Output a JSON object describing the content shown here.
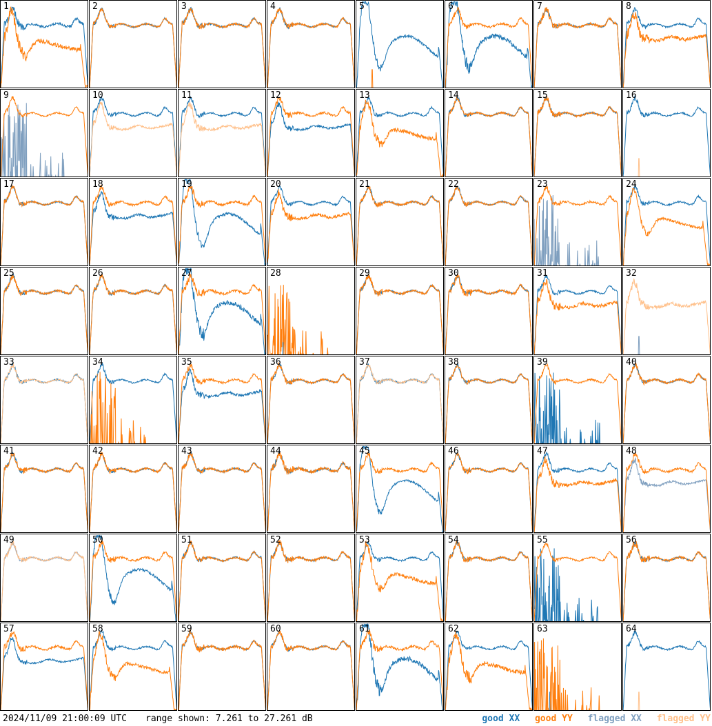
{
  "footer": {
    "timestamp": "2024/11/09 21:00:09 UTC",
    "range_label": "range shown: 7.261 to 27.261 dB"
  },
  "legend": [
    {
      "label": "good XX",
      "color": "#1f77b4"
    },
    {
      "label": "good YY",
      "color": "#ff7f0e"
    },
    {
      "label": "flagged XX",
      "color": "#7f9fbf"
    },
    {
      "label": "flagged YY",
      "color": "#ffc08a"
    }
  ],
  "chart_data": {
    "type": "line",
    "ylim": [
      7.261,
      27.261
    ],
    "grid_rows": 8,
    "grid_cols": 8,
    "panels": [
      {
        "label": "1",
        "xx": {
          "status": "good",
          "profile": "wide",
          "noise": 5
        },
        "yy": {
          "status": "good",
          "profile": "sag_drop",
          "noise": 8
        }
      },
      {
        "label": "2",
        "xx": {
          "status": "good",
          "profile": "wide",
          "noise": 3
        },
        "yy": {
          "status": "good",
          "profile": "wide",
          "noise": 3
        }
      },
      {
        "label": "3",
        "xx": {
          "status": "good",
          "profile": "wide",
          "noise": 4
        },
        "yy": {
          "status": "good",
          "profile": "wide",
          "noise": 4
        }
      },
      {
        "label": "4",
        "xx": {
          "status": "good",
          "profile": "wide",
          "noise": 3
        },
        "yy": {
          "status": "good",
          "profile": "wide",
          "noise": 4
        }
      },
      {
        "label": "5",
        "xx": {
          "status": "good",
          "profile": "dip",
          "noise": 5
        },
        "yy": {
          "status": "good",
          "profile": "dead",
          "noise": 0
        }
      },
      {
        "label": "6",
        "xx": {
          "status": "good",
          "profile": "dip",
          "noise": 9
        },
        "yy": {
          "status": "good",
          "profile": "wide",
          "noise": 4
        }
      },
      {
        "label": "7",
        "xx": {
          "status": "good",
          "profile": "wide",
          "noise": 3
        },
        "yy": {
          "status": "good",
          "profile": "wide",
          "noise": 5
        }
      },
      {
        "label": "8",
        "xx": {
          "status": "good",
          "profile": "wide",
          "noise": 3
        },
        "yy": {
          "status": "good",
          "profile": "sag",
          "noise": 7
        }
      },
      {
        "label": "9",
        "xx": {
          "status": "flagged",
          "profile": "spiky_low",
          "noise": 0
        },
        "yy": {
          "status": "good",
          "profile": "wide",
          "noise": 3
        }
      },
      {
        "label": "10",
        "xx": {
          "status": "good",
          "profile": "wide",
          "noise": 3
        },
        "yy": {
          "status": "flagged",
          "profile": "sag",
          "noise": 4
        }
      },
      {
        "label": "11",
        "xx": {
          "status": "good",
          "profile": "wide",
          "noise": 3
        },
        "yy": {
          "status": "flagged",
          "profile": "sag",
          "noise": 5
        }
      },
      {
        "label": "12",
        "xx": {
          "status": "good",
          "profile": "sag",
          "noise": 4
        },
        "yy": {
          "status": "good",
          "profile": "wide",
          "noise": 4
        }
      },
      {
        "label": "13",
        "xx": {
          "status": "good",
          "profile": "wide",
          "noise": 3
        },
        "yy": {
          "status": "good",
          "profile": "sag_drop",
          "noise": 7
        }
      },
      {
        "label": "14",
        "xx": {
          "status": "good",
          "profile": "wide",
          "noise": 3
        },
        "yy": {
          "status": "good",
          "profile": "wide",
          "noise": 3
        }
      },
      {
        "label": "15",
        "xx": {
          "status": "good",
          "profile": "wide",
          "noise": 3
        },
        "yy": {
          "status": "good",
          "profile": "wide",
          "noise": 4
        }
      },
      {
        "label": "16",
        "xx": {
          "status": "good",
          "profile": "wide",
          "noise": 3
        },
        "yy": {
          "status": "flagged",
          "profile": "dead",
          "noise": 0
        }
      },
      {
        "label": "17",
        "xx": {
          "status": "good",
          "profile": "wide",
          "noise": 3
        },
        "yy": {
          "status": "good",
          "profile": "wide",
          "noise": 3
        }
      },
      {
        "label": "18",
        "xx": {
          "status": "good",
          "profile": "sag",
          "noise": 4
        },
        "yy": {
          "status": "good",
          "profile": "wide",
          "noise": 4
        }
      },
      {
        "label": "19",
        "xx": {
          "status": "good",
          "profile": "dip",
          "noise": 5
        },
        "yy": {
          "status": "good",
          "profile": "wide",
          "noise": 5
        }
      },
      {
        "label": "20",
        "xx": {
          "status": "good",
          "profile": "wide",
          "noise": 3
        },
        "yy": {
          "status": "good",
          "profile": "sag",
          "noise": 6
        }
      },
      {
        "label": "21",
        "xx": {
          "status": "good",
          "profile": "wide",
          "noise": 3
        },
        "yy": {
          "status": "good",
          "profile": "wide",
          "noise": 4
        }
      },
      {
        "label": "22",
        "xx": {
          "status": "good",
          "profile": "wide",
          "noise": 3
        },
        "yy": {
          "status": "good",
          "profile": "wide",
          "noise": 3
        }
      },
      {
        "label": "23",
        "xx": {
          "status": "flagged",
          "profile": "spiky_low",
          "noise": 0
        },
        "yy": {
          "status": "good",
          "profile": "wide",
          "noise": 4
        }
      },
      {
        "label": "24",
        "xx": {
          "status": "good",
          "profile": "wide",
          "noise": 3
        },
        "yy": {
          "status": "good",
          "profile": "sag_drop",
          "noise": 5
        }
      },
      {
        "label": "25",
        "xx": {
          "status": "good",
          "profile": "wide",
          "noise": 3
        },
        "yy": {
          "status": "good",
          "profile": "wide",
          "noise": 4
        }
      },
      {
        "label": "26",
        "xx": {
          "status": "good",
          "profile": "wide",
          "noise": 3
        },
        "yy": {
          "status": "good",
          "profile": "wide",
          "noise": 4
        }
      },
      {
        "label": "27",
        "xx": {
          "status": "good",
          "profile": "dip",
          "noise": 9
        },
        "yy": {
          "status": "good",
          "profile": "wide",
          "noise": 5
        }
      },
      {
        "label": "28",
        "xx": {
          "status": "good",
          "profile": "dead",
          "noise": 0
        },
        "yy": {
          "status": "good",
          "profile": "spiky_low",
          "noise": 0
        }
      },
      {
        "label": "29",
        "xx": {
          "status": "good",
          "profile": "wide",
          "noise": 3
        },
        "yy": {
          "status": "good",
          "profile": "wide",
          "noise": 4
        }
      },
      {
        "label": "30",
        "xx": {
          "status": "good",
          "profile": "wide",
          "noise": 3
        },
        "yy": {
          "status": "good",
          "profile": "wide",
          "noise": 5
        }
      },
      {
        "label": "31",
        "xx": {
          "status": "good",
          "profile": "wide",
          "noise": 3
        },
        "yy": {
          "status": "good",
          "profile": "sag",
          "noise": 6
        }
      },
      {
        "label": "32",
        "xx": {
          "status": "flagged",
          "profile": "dead",
          "noise": 0
        },
        "yy": {
          "status": "flagged",
          "profile": "sag",
          "noise": 6
        }
      },
      {
        "label": "33",
        "xx": {
          "status": "good",
          "profile": "wide",
          "noise": 3
        },
        "yy": {
          "status": "flagged",
          "profile": "wide",
          "noise": 3
        }
      },
      {
        "label": "34",
        "xx": {
          "status": "good",
          "profile": "wide",
          "noise": 3
        },
        "yy": {
          "status": "good",
          "profile": "spiky_low",
          "noise": 0
        }
      },
      {
        "label": "35",
        "xx": {
          "status": "good",
          "profile": "sag",
          "noise": 5
        },
        "yy": {
          "status": "good",
          "profile": "wide",
          "noise": 4
        }
      },
      {
        "label": "36",
        "xx": {
          "status": "good",
          "profile": "wide",
          "noise": 3
        },
        "yy": {
          "status": "good",
          "profile": "wide",
          "noise": 4
        }
      },
      {
        "label": "37",
        "xx": {
          "status": "good",
          "profile": "wide",
          "noise": 3
        },
        "yy": {
          "status": "flagged",
          "profile": "wide",
          "noise": 3
        }
      },
      {
        "label": "38",
        "xx": {
          "status": "good",
          "profile": "wide",
          "noise": 3
        },
        "yy": {
          "status": "good",
          "profile": "wide",
          "noise": 3
        }
      },
      {
        "label": "39",
        "xx": {
          "status": "good",
          "profile": "spiky_low",
          "noise": 0
        },
        "yy": {
          "status": "good",
          "profile": "wide",
          "noise": 3
        }
      },
      {
        "label": "40",
        "xx": {
          "status": "good",
          "profile": "wide",
          "noise": 3
        },
        "yy": {
          "status": "good",
          "profile": "wide",
          "noise": 4
        }
      },
      {
        "label": "41",
        "xx": {
          "status": "good",
          "profile": "wide",
          "noise": 3
        },
        "yy": {
          "status": "good",
          "profile": "wide",
          "noise": 4
        }
      },
      {
        "label": "42",
        "xx": {
          "status": "good",
          "profile": "wide",
          "noise": 3
        },
        "yy": {
          "status": "good",
          "profile": "wide",
          "noise": 4
        }
      },
      {
        "label": "43",
        "xx": {
          "status": "good",
          "profile": "wide",
          "noise": 3
        },
        "yy": {
          "status": "good",
          "profile": "wide",
          "noise": 4
        }
      },
      {
        "label": "44",
        "xx": {
          "status": "good",
          "profile": "wide",
          "noise": 4
        },
        "yy": {
          "status": "good",
          "profile": "wide",
          "noise": 6
        }
      },
      {
        "label": "45",
        "xx": {
          "status": "good",
          "profile": "dip",
          "noise": 4
        },
        "yy": {
          "status": "good",
          "profile": "wide",
          "noise": 4
        }
      },
      {
        "label": "46",
        "xx": {
          "status": "good",
          "profile": "wide",
          "noise": 3
        },
        "yy": {
          "status": "good",
          "profile": "wide",
          "noise": 4
        }
      },
      {
        "label": "47",
        "xx": {
          "status": "good",
          "profile": "wide",
          "noise": 3
        },
        "yy": {
          "status": "good",
          "profile": "sag",
          "noise": 6
        }
      },
      {
        "label": "48",
        "xx": {
          "status": "flagged",
          "profile": "sag",
          "noise": 4
        },
        "yy": {
          "status": "good",
          "profile": "wide",
          "noise": 4
        }
      },
      {
        "label": "49",
        "xx": {
          "status": "flagged",
          "profile": "wide",
          "noise": 3
        },
        "yy": {
          "status": "flagged",
          "profile": "wide",
          "noise": 3
        }
      },
      {
        "label": "50",
        "xx": {
          "status": "good",
          "profile": "dip",
          "noise": 5
        },
        "yy": {
          "status": "good",
          "profile": "wide",
          "noise": 4
        }
      },
      {
        "label": "51",
        "xx": {
          "status": "good",
          "profile": "wide",
          "noise": 3
        },
        "yy": {
          "status": "good",
          "profile": "wide",
          "noise": 4
        }
      },
      {
        "label": "52",
        "xx": {
          "status": "good",
          "profile": "wide",
          "noise": 3
        },
        "yy": {
          "status": "good",
          "profile": "wide",
          "noise": 5
        }
      },
      {
        "label": "53",
        "xx": {
          "status": "good",
          "profile": "wide",
          "noise": 3
        },
        "yy": {
          "status": "good",
          "profile": "sag_drop",
          "noise": 7
        }
      },
      {
        "label": "54",
        "xx": {
          "status": "good",
          "profile": "wide",
          "noise": 3
        },
        "yy": {
          "status": "good",
          "profile": "wide",
          "noise": 4
        }
      },
      {
        "label": "55",
        "xx": {
          "status": "good",
          "profile": "spiky_low",
          "noise": 0
        },
        "yy": {
          "status": "good",
          "profile": "wide",
          "noise": 3
        }
      },
      {
        "label": "56",
        "xx": {
          "status": "good",
          "profile": "wide",
          "noise": 3
        },
        "yy": {
          "status": "good",
          "profile": "wide",
          "noise": 5
        }
      },
      {
        "label": "57",
        "xx": {
          "status": "good",
          "profile": "sag",
          "noise": 3
        },
        "yy": {
          "status": "good",
          "profile": "wide",
          "noise": 4
        }
      },
      {
        "label": "58",
        "xx": {
          "status": "good",
          "profile": "wide",
          "noise": 3
        },
        "yy": {
          "status": "good",
          "profile": "sag_drop",
          "noise": 6
        }
      },
      {
        "label": "59",
        "xx": {
          "status": "good",
          "profile": "wide",
          "noise": 3
        },
        "yy": {
          "status": "good",
          "profile": "wide",
          "noise": 5
        }
      },
      {
        "label": "60",
        "xx": {
          "status": "good",
          "profile": "wide",
          "noise": 3
        },
        "yy": {
          "status": "good",
          "profile": "wide",
          "noise": 4
        }
      },
      {
        "label": "61",
        "xx": {
          "status": "good",
          "profile": "dip",
          "noise": 9
        },
        "yy": {
          "status": "good",
          "profile": "wide",
          "noise": 5
        }
      },
      {
        "label": "62",
        "xx": {
          "status": "good",
          "profile": "wide",
          "noise": 3
        },
        "yy": {
          "status": "good",
          "profile": "sag_drop",
          "noise": 8
        }
      },
      {
        "label": "63",
        "xx": {
          "status": "good",
          "profile": "dead",
          "noise": 0
        },
        "yy": {
          "status": "good",
          "profile": "spiky_low",
          "noise": 0
        }
      },
      {
        "label": "64",
        "xx": {
          "status": "good",
          "profile": "wide",
          "noise": 3
        },
        "yy": {
          "status": "flagged",
          "profile": "dead",
          "noise": 0
        }
      }
    ]
  }
}
